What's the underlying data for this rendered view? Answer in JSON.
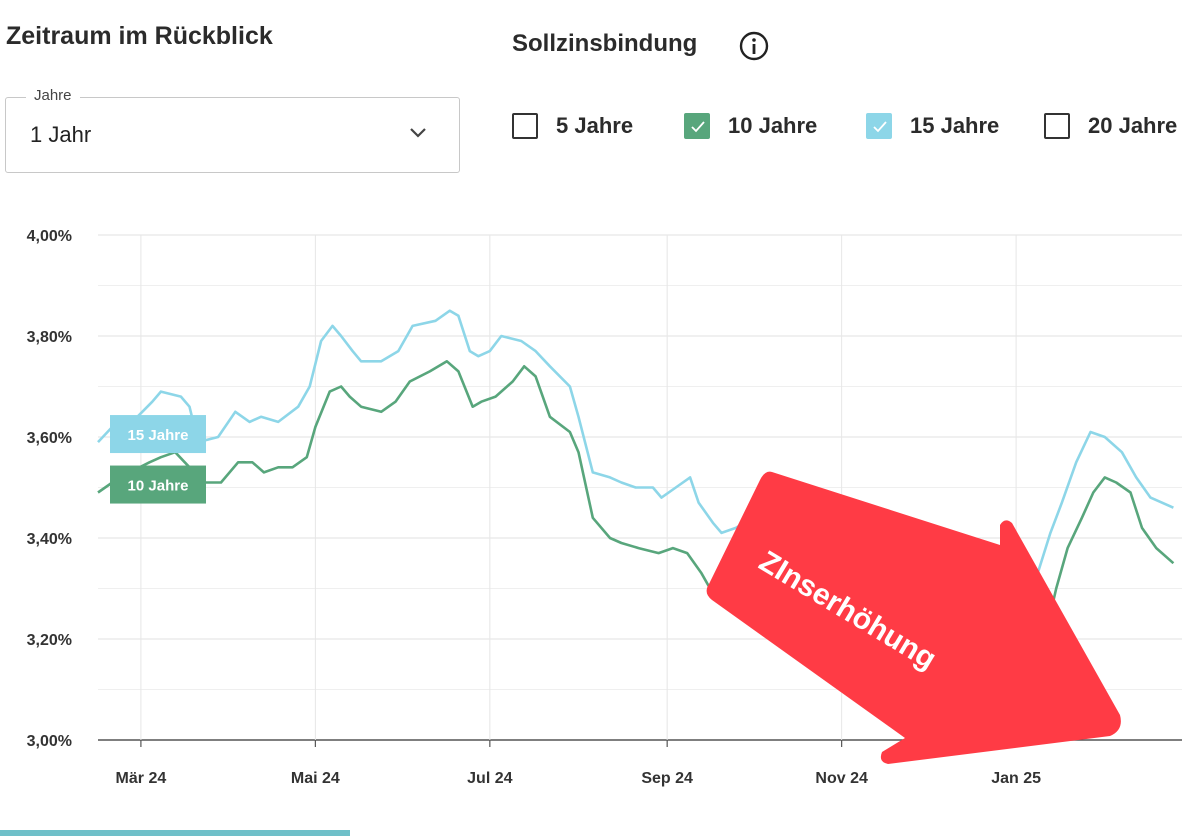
{
  "header": {
    "title": "Zeitraum im Rückblick",
    "sollzins_title": "Sollzinsbindung"
  },
  "period_select": {
    "label": "Jahre",
    "value": "1 Jahr"
  },
  "checkboxes": [
    {
      "label": "5 Jahre",
      "checked": false
    },
    {
      "label": "10 Jahre",
      "checked": true,
      "color": "#58a67c"
    },
    {
      "label": "15 Jahre",
      "checked": true,
      "color": "#8dd6e8"
    },
    {
      "label": "20 Jahre",
      "checked": false
    }
  ],
  "annotation": {
    "text": "ZInserhöhung",
    "color": "#ff3b45"
  },
  "chart_data": {
    "type": "line",
    "ylim": [
      3.0,
      4.0
    ],
    "yticks": [
      {
        "value": 4.0,
        "label": "4,00%"
      },
      {
        "value": 3.8,
        "label": "3,80%"
      },
      {
        "value": 3.6,
        "label": "3,60%"
      },
      {
        "value": 3.4,
        "label": "3,40%"
      },
      {
        "value": 3.2,
        "label": "3,20%"
      },
      {
        "value": 3.0,
        "label": "3,00%"
      }
    ],
    "xlim": [
      "2024-02-15",
      "2025-02-28"
    ],
    "xticks": [
      {
        "date": "2024-03-01",
        "label": "Mär 24"
      },
      {
        "date": "2024-05-01",
        "label": "Mai 24"
      },
      {
        "date": "2024-07-01",
        "label": "Jul 24"
      },
      {
        "date": "2024-09-01",
        "label": "Sep 24"
      },
      {
        "date": "2024-11-01",
        "label": "Nov 24"
      },
      {
        "date": "2025-01-01",
        "label": "Jan 25"
      }
    ],
    "grid": true,
    "series": [
      {
        "name": "15 Jahre",
        "color": "#8dd6e8",
        "points": [
          [
            "2024-02-15",
            3.59
          ],
          [
            "2024-02-20",
            3.62
          ],
          [
            "2024-02-27",
            3.63
          ],
          [
            "2024-03-05",
            3.67
          ],
          [
            "2024-03-08",
            3.69
          ],
          [
            "2024-03-15",
            3.68
          ],
          [
            "2024-03-18",
            3.66
          ],
          [
            "2024-03-21",
            3.59
          ],
          [
            "2024-03-28",
            3.6
          ],
          [
            "2024-04-03",
            3.65
          ],
          [
            "2024-04-08",
            3.63
          ],
          [
            "2024-04-12",
            3.64
          ],
          [
            "2024-04-18",
            3.63
          ],
          [
            "2024-04-25",
            3.66
          ],
          [
            "2024-04-29",
            3.7
          ],
          [
            "2024-05-03",
            3.79
          ],
          [
            "2024-05-07",
            3.82
          ],
          [
            "2024-05-10",
            3.8
          ],
          [
            "2024-05-14",
            3.77
          ],
          [
            "2024-05-17",
            3.75
          ],
          [
            "2024-05-24",
            3.75
          ],
          [
            "2024-05-30",
            3.77
          ],
          [
            "2024-06-04",
            3.82
          ],
          [
            "2024-06-12",
            3.83
          ],
          [
            "2024-06-17",
            3.85
          ],
          [
            "2024-06-20",
            3.84
          ],
          [
            "2024-06-24",
            3.77
          ],
          [
            "2024-06-27",
            3.76
          ],
          [
            "2024-07-01",
            3.77
          ],
          [
            "2024-07-05",
            3.8
          ],
          [
            "2024-07-12",
            3.79
          ],
          [
            "2024-07-17",
            3.77
          ],
          [
            "2024-07-22",
            3.74
          ],
          [
            "2024-07-29",
            3.7
          ],
          [
            "2024-08-01",
            3.64
          ],
          [
            "2024-08-06",
            3.53
          ],
          [
            "2024-08-12",
            3.52
          ],
          [
            "2024-08-16",
            3.51
          ],
          [
            "2024-08-21",
            3.5
          ],
          [
            "2024-08-27",
            3.5
          ],
          [
            "2024-08-30",
            3.48
          ],
          [
            "2024-09-04",
            3.5
          ],
          [
            "2024-09-09",
            3.52
          ],
          [
            "2024-09-12",
            3.47
          ],
          [
            "2024-09-17",
            3.43
          ],
          [
            "2024-09-20",
            3.41
          ],
          [
            "2024-09-25",
            3.42
          ],
          [
            "2024-10-01",
            3.44
          ],
          [
            "2024-10-04",
            3.4
          ],
          [
            "2024-10-07",
            3.38
          ],
          [
            "2024-10-11",
            3.44
          ],
          [
            "2024-10-16",
            3.46
          ],
          [
            "2024-10-22",
            3.43
          ],
          [
            "2024-10-27",
            3.4
          ],
          [
            "2024-11-01",
            3.41
          ],
          [
            "2024-11-06",
            3.42
          ],
          [
            "2024-11-12",
            3.42
          ],
          [
            "2024-11-19",
            3.38
          ],
          [
            "2024-11-26",
            3.35
          ],
          [
            "2024-12-02",
            3.32
          ],
          [
            "2024-12-06",
            3.3
          ],
          [
            "2024-12-10",
            3.26
          ],
          [
            "2024-12-18",
            3.26
          ],
          [
            "2024-12-23",
            3.28
          ],
          [
            "2024-12-27",
            3.27
          ],
          [
            "2025-01-03",
            3.28
          ],
          [
            "2025-01-08",
            3.32
          ],
          [
            "2025-01-13",
            3.41
          ],
          [
            "2025-01-17",
            3.47
          ],
          [
            "2025-01-22",
            3.55
          ],
          [
            "2025-01-27",
            3.61
          ],
          [
            "2025-02-01",
            3.6
          ],
          [
            "2025-02-07",
            3.57
          ],
          [
            "2025-02-12",
            3.52
          ],
          [
            "2025-02-17",
            3.48
          ],
          [
            "2025-02-25",
            3.46
          ]
        ]
      },
      {
        "name": "10 Jahre",
        "color": "#58a67c",
        "points": [
          [
            "2024-02-15",
            3.49
          ],
          [
            "2024-02-20",
            3.51
          ],
          [
            "2024-02-26",
            3.53
          ],
          [
            "2024-03-04",
            3.55
          ],
          [
            "2024-03-08",
            3.56
          ],
          [
            "2024-03-13",
            3.57
          ],
          [
            "2024-03-18",
            3.54
          ],
          [
            "2024-03-22",
            3.51
          ],
          [
            "2024-03-29",
            3.51
          ],
          [
            "2024-04-04",
            3.55
          ],
          [
            "2024-04-09",
            3.55
          ],
          [
            "2024-04-13",
            3.53
          ],
          [
            "2024-04-18",
            3.54
          ],
          [
            "2024-04-23",
            3.54
          ],
          [
            "2024-04-28",
            3.56
          ],
          [
            "2024-05-01",
            3.62
          ],
          [
            "2024-05-06",
            3.69
          ],
          [
            "2024-05-10",
            3.7
          ],
          [
            "2024-05-13",
            3.68
          ],
          [
            "2024-05-17",
            3.66
          ],
          [
            "2024-05-24",
            3.65
          ],
          [
            "2024-05-29",
            3.67
          ],
          [
            "2024-06-03",
            3.71
          ],
          [
            "2024-06-10",
            3.73
          ],
          [
            "2024-06-16",
            3.75
          ],
          [
            "2024-06-20",
            3.73
          ],
          [
            "2024-06-25",
            3.66
          ],
          [
            "2024-06-28",
            3.67
          ],
          [
            "2024-07-03",
            3.68
          ],
          [
            "2024-07-09",
            3.71
          ],
          [
            "2024-07-13",
            3.74
          ],
          [
            "2024-07-17",
            3.72
          ],
          [
            "2024-07-22",
            3.64
          ],
          [
            "2024-07-29",
            3.61
          ],
          [
            "2024-08-01",
            3.57
          ],
          [
            "2024-08-06",
            3.44
          ],
          [
            "2024-08-12",
            3.4
          ],
          [
            "2024-08-16",
            3.39
          ],
          [
            "2024-08-22",
            3.38
          ],
          [
            "2024-08-29",
            3.37
          ],
          [
            "2024-09-03",
            3.38
          ],
          [
            "2024-09-08",
            3.37
          ],
          [
            "2024-09-13",
            3.33
          ],
          [
            "2024-09-17",
            3.29
          ],
          [
            "2024-09-21",
            3.27
          ],
          [
            "2024-09-27",
            3.27
          ],
          [
            "2024-10-03",
            3.31
          ],
          [
            "2024-10-08",
            3.29
          ],
          [
            "2024-10-12",
            3.25
          ],
          [
            "2024-10-16",
            3.29
          ],
          [
            "2024-10-23",
            3.35
          ],
          [
            "2024-10-29",
            3.34
          ],
          [
            "2024-11-02",
            3.29
          ],
          [
            "2024-11-08",
            3.28
          ],
          [
            "2024-11-14",
            3.29
          ],
          [
            "2024-11-19",
            3.27
          ],
          [
            "2024-11-24",
            3.26
          ],
          [
            "2024-11-29",
            3.25
          ],
          [
            "2024-12-03",
            3.21
          ],
          [
            "2024-12-08",
            3.18
          ],
          [
            "2024-12-15",
            3.16
          ],
          [
            "2024-12-19",
            3.15
          ],
          [
            "2024-12-24",
            3.17
          ],
          [
            "2024-12-30",
            3.19
          ],
          [
            "2025-01-03",
            3.17
          ],
          [
            "2025-01-07",
            3.16
          ],
          [
            "2025-01-11",
            3.2
          ],
          [
            "2025-01-15",
            3.3
          ],
          [
            "2025-01-19",
            3.38
          ],
          [
            "2025-01-24",
            3.44
          ],
          [
            "2025-01-28",
            3.49
          ],
          [
            "2025-02-01",
            3.52
          ],
          [
            "2025-02-05",
            3.51
          ],
          [
            "2025-02-10",
            3.49
          ],
          [
            "2025-02-14",
            3.42
          ],
          [
            "2025-02-19",
            3.38
          ],
          [
            "2025-02-25",
            3.35
          ]
        ]
      }
    ]
  }
}
